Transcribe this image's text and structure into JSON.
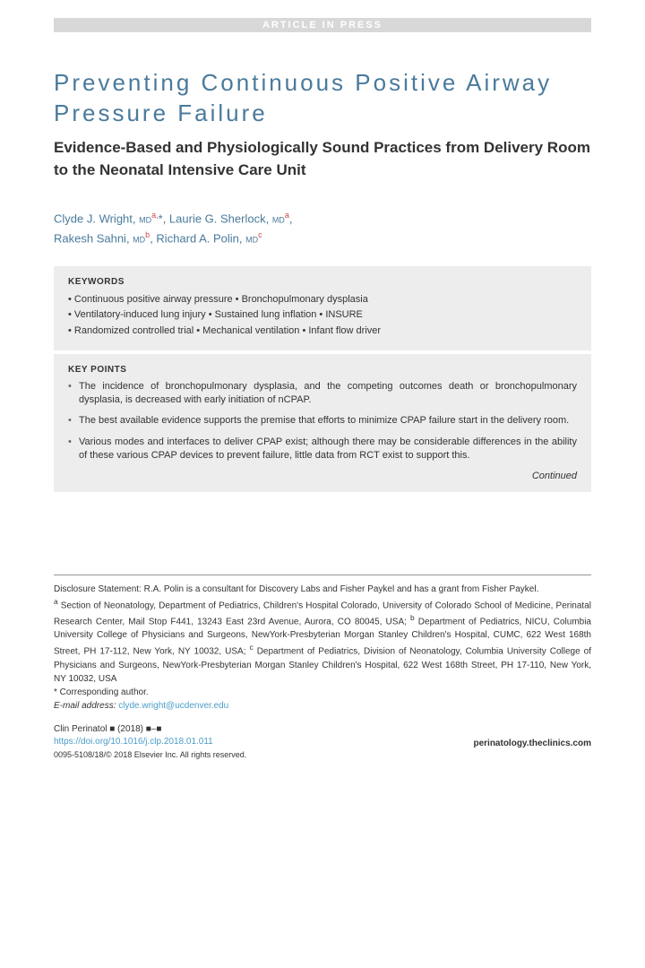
{
  "banner": "ARTICLE IN PRESS",
  "title": "Preventing Continuous Positive Airway Pressure Failure",
  "subtitle": "Evidence-Based and Physiologically Sound Practices from Delivery Room to the Neonatal Intensive Care Unit",
  "authors_html": "Clyde J. Wright, <span class='deg'>MD</span><sup>a,</sup>*, Laurie G. Sherlock, <span class='deg'>MD</span><sup>a</sup>,<br>Rakesh Sahni, <span class='deg'>MD</span><sup>b</sup>, Richard A. Polin, <span class='deg'>MD</span><sup>c</sup>",
  "keywords": {
    "heading": "KEYWORDS",
    "items": [
      "Continuous positive airway pressure",
      "Bronchopulmonary dysplasia",
      "Ventilatory-induced lung injury",
      "Sustained lung inflation",
      "INSURE",
      "Randomized controlled trial",
      "Mechanical ventilation",
      "Infant flow driver"
    ]
  },
  "keypoints": {
    "heading": "KEY POINTS",
    "items": [
      "The incidence of bronchopulmonary dysplasia, and the competing outcomes death or bronchopulmonary dysplasia, is decreased with early initiation of nCPAP.",
      "The best available evidence supports the premise that efforts to minimize CPAP failure start in the delivery room.",
      "Various modes and interfaces to deliver CPAP exist; although there may be considerable differences in the ability of these various CPAP devices to prevent failure, little data from RCT exist to support this."
    ],
    "continued": "Continued"
  },
  "disclosure": {
    "statement": "Disclosure Statement: R.A. Polin is a consultant for Discovery Labs and Fisher Paykel and has a grant from Fisher Paykel.",
    "affiliations": "<sup>a</sup> Section of Neonatology, Department of Pediatrics, Children's Hospital Colorado, University of Colorado School of Medicine, Perinatal Research Center, Mail Stop F441, 13243 East 23rd Avenue, Aurora, CO 80045, USA; <sup>b</sup> Department of Pediatrics, NICU, Columbia University College of Physicians and Surgeons, NewYork-Presbyterian Morgan Stanley Children's Hospital, CUMC, 622 West 168th Street, PH 17-112, New York, NY 10032, USA; <sup>c</sup> Department of Pediatrics, Division of Neonatology, Columbia University College of Physicians and Surgeons, NewYork-Presbyterian Morgan Stanley Children's Hospital, 622 West 168th Street, PH 17-110, New York, NY 10032, USA",
    "corresponding": "* Corresponding author.",
    "email_label": "E-mail address:",
    "email": "clyde.wright@ucdenver.edu"
  },
  "footer": {
    "journal": "Clin Perinatol ■ (2018) ■–■",
    "doi": "https://doi.org/10.1016/j.clp.2018.01.011",
    "site": "perinatology.theclinics.com",
    "copyright": "0095-5108/18/© 2018 Elsevier Inc. All rights reserved."
  },
  "colors": {
    "title_color": "#4a7a9c",
    "link_color": "#4a9cc9",
    "box_bg": "#ededed",
    "banner_bg": "#d8d8d8",
    "text_color": "#333333",
    "sup_color": "#c94a4a"
  }
}
